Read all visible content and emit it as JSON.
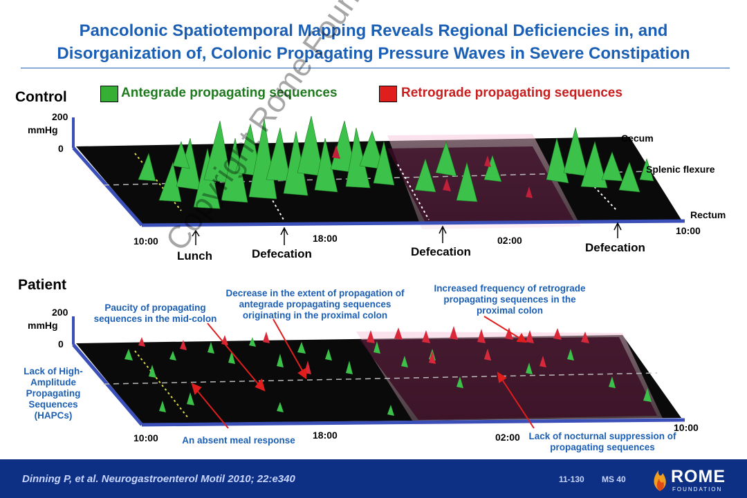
{
  "title": {
    "line1": "Pancolonic Spatiotemporal Mapping Reveals Regional Deficiencies in, and",
    "line2": "Disorganization of, Colonic Propagating Pressure Waves in Severe Constipation"
  },
  "legend": {
    "antegrade_label": "Antegrade propagating sequences",
    "retrograde_label": "Retrograde propagating sequences",
    "antegrade_color": "#35b035",
    "retrograde_color": "#d81e1e"
  },
  "control": {
    "label": "Control",
    "axis_top": "200",
    "axis_unit": "mmHg",
    "axis_zero": "0",
    "region_labels": [
      "Cecum",
      "Splenic flexure",
      "Rectum"
    ],
    "times": [
      "10:00",
      "18:00",
      "02:00",
      "10:00"
    ],
    "events": [
      "Lunch",
      "Defecation",
      "Defecation",
      "Defecation"
    ]
  },
  "patient": {
    "label": "Patient",
    "axis_top": "200",
    "axis_unit": "mmHg",
    "axis_zero": "0",
    "times": [
      "10:00",
      "18:00",
      "02:00",
      "10:00"
    ],
    "annotations": {
      "paucity": "Paucity of propagating sequences in the mid-colon",
      "decrease": "Decrease in the extent of propagation of antegrade propagating sequences originating in the proximal colon",
      "increased": "Increased frequency of retrograde propagating sequences in the proximal colon",
      "hapcs": "Lack of High-Amplitude Propagating Sequences (HAPCs)",
      "meal": "An absent meal response",
      "nocturnal": "Lack of nocturnal suppression of propagating sequences"
    }
  },
  "footer": {
    "citation": "Dinning P, et al. Neurogastroenterol Motil  2010; 22:e340",
    "code1": "11-130",
    "code2": "MS 40",
    "logo_main": "ROME",
    "logo_sub": "FOUNDATION"
  },
  "watermark": "Copyright Rome Foundation"
}
